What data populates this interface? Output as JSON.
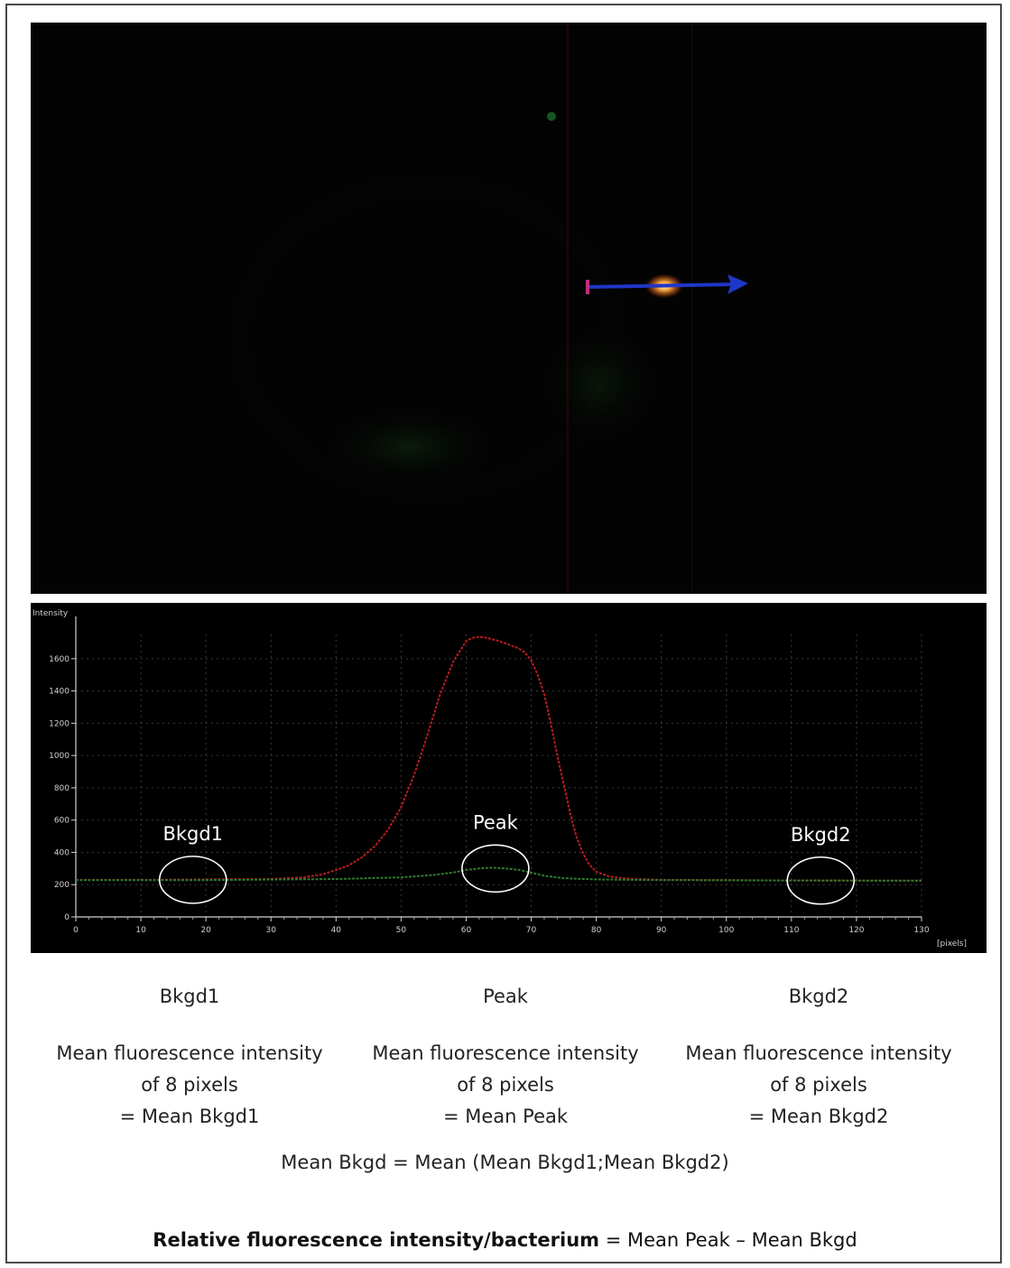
{
  "chart_data": {
    "type": "line",
    "ylabel": "Intensity",
    "xlabel": "[pixels]",
    "xlim": [
      0,
      130
    ],
    "ylim": [
      0,
      1750
    ],
    "xticks": [
      0,
      10,
      20,
      30,
      40,
      50,
      60,
      70,
      80,
      90,
      100,
      110,
      120,
      130
    ],
    "yticks": [
      0,
      200,
      400,
      600,
      800,
      1000,
      1200,
      1400,
      1600
    ],
    "grid": true,
    "series": [
      {
        "color": "#b81e1e",
        "x": [
          0,
          10,
          20,
          30,
          35,
          38,
          40,
          42,
          44,
          46,
          48,
          50,
          52,
          54,
          56,
          58,
          60,
          61,
          62,
          63,
          64,
          65,
          66,
          67,
          68,
          69,
          70,
          71,
          72,
          73,
          74,
          75,
          76,
          77,
          78,
          79,
          80,
          82,
          84,
          86,
          90,
          100,
          110,
          120,
          130
        ],
        "values": [
          230,
          230,
          232,
          235,
          245,
          265,
          290,
          320,
          370,
          440,
          540,
          680,
          880,
          1120,
          1380,
          1580,
          1710,
          1730,
          1735,
          1730,
          1720,
          1710,
          1695,
          1680,
          1665,
          1640,
          1590,
          1500,
          1380,
          1200,
          1000,
          820,
          640,
          490,
          390,
          320,
          280,
          250,
          240,
          235,
          230,
          228,
          226,
          225,
          225
        ]
      },
      {
        "color": "#2f7a2f",
        "x": [
          0,
          20,
          40,
          50,
          55,
          58,
          60,
          62,
          64,
          66,
          68,
          70,
          72,
          75,
          80,
          90,
          110,
          130
        ],
        "values": [
          228,
          228,
          235,
          245,
          260,
          275,
          290,
          300,
          305,
          300,
          292,
          275,
          255,
          240,
          232,
          228,
          226,
          225
        ]
      }
    ],
    "annotations": [
      {
        "text": "Bkgd1",
        "x": 18,
        "y": 230
      },
      {
        "text": "Peak",
        "x": 64.5,
        "y": 300
      },
      {
        "text": "Bkgd2",
        "x": 114.5,
        "y": 225
      }
    ]
  },
  "columns": [
    {
      "head": "Bkgd1",
      "line1": "Mean fluorescence intensity",
      "line2": "of 8 pixels",
      "line3": "= Mean Bkgd1"
    },
    {
      "head": "Peak",
      "line1": "Mean fluorescence intensity",
      "line2": "of 8 pixels",
      "line3": "= Mean Peak"
    },
    {
      "head": "Bkgd2",
      "line1": "Mean fluorescence intensity",
      "line2": "of 8 pixels",
      "line3": "= Mean Bkgd2"
    }
  ],
  "formula_bkgd": "Mean Bkgd = Mean (Mean Bkgd1;Mean Bkgd2)",
  "formula_result": {
    "bold": "Relative fluorescence intensity/bacterium",
    "rest": " = Mean Peak – Mean Bkgd"
  }
}
